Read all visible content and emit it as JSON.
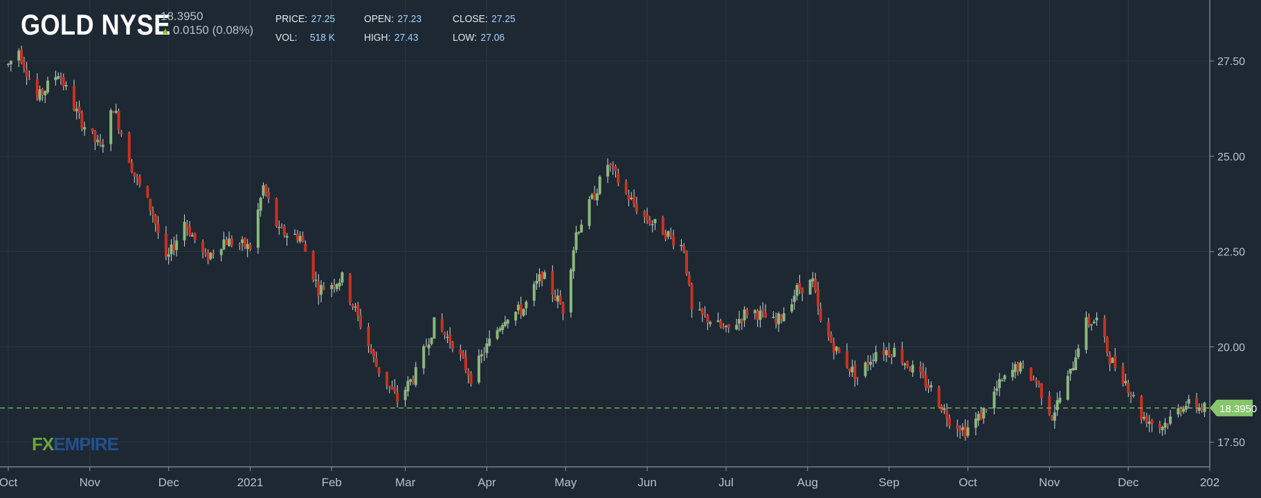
{
  "header": {
    "symbol": "GOLD NYSE",
    "last_price": "18.3950",
    "change": "0.0150 (0.08%)",
    "change_direction": "up",
    "stats": {
      "price_label": "PRICE:",
      "price": "27.25",
      "open_label": "OPEN:",
      "open": "27.23",
      "close_label": "CLOSE:",
      "close": "27.25",
      "vol_label": "VOL:",
      "vol": "518 K",
      "high_label": "HIGH:",
      "high": "27.43",
      "low_label": "LOW:",
      "low": "27.06"
    }
  },
  "logo": {
    "fx": "FX",
    "empire": "EMPIRE"
  },
  "colors": {
    "background": "#1e2833",
    "grid": "#2a3642",
    "up": "#8ab97a",
    "down": "#c8321f",
    "axis_text": "#b9c2ca",
    "price_tag": "#86c56a"
  },
  "chart_data": {
    "type": "candlestick",
    "title": "GOLD NYSE",
    "ylim": [
      16.85,
      29.1
    ],
    "y_ticks": [
      17.5,
      20.0,
      22.5,
      25.0,
      27.5
    ],
    "y_tick_labels": [
      "17.50",
      "20.00",
      "22.50",
      "25.00",
      "27.50"
    ],
    "x_months": [
      "Oct",
      "Nov",
      "Dec",
      "2021",
      "Feb",
      "Mar",
      "Apr",
      "May",
      "Jun",
      "Jul",
      "Aug",
      "Sep",
      "Oct",
      "Nov",
      "Dec",
      "202"
    ],
    "x_start": "2020-10-01",
    "x_end": "2022-01-01",
    "last_price_line": 18.395,
    "last_price_label": "18.3950",
    "key_points": [
      [
        "2020-10-01",
        27.4
      ],
      [
        "2020-10-05",
        27.8
      ],
      [
        "2020-10-12",
        26.5
      ],
      [
        "2020-10-20",
        27.2
      ],
      [
        "2020-10-28",
        26.0
      ],
      [
        "2020-11-05",
        25.2
      ],
      [
        "2020-11-10",
        26.3
      ],
      [
        "2020-11-18",
        24.5
      ],
      [
        "2020-11-25",
        23.5
      ],
      [
        "2020-11-30",
        22.2
      ],
      [
        "2020-12-07",
        23.3
      ],
      [
        "2020-12-15",
        22.3
      ],
      [
        "2020-12-22",
        22.8
      ],
      [
        "2021-01-01",
        22.6
      ],
      [
        "2021-01-06",
        24.2
      ],
      [
        "2021-01-12",
        23.0
      ],
      [
        "2021-01-20",
        22.9
      ],
      [
        "2021-01-27",
        21.5
      ],
      [
        "2021-02-05",
        21.8
      ],
      [
        "2021-02-12",
        20.6
      ],
      [
        "2021-02-18",
        19.5
      ],
      [
        "2021-02-26",
        18.6
      ],
      [
        "2021-03-05",
        19.3
      ],
      [
        "2021-03-12",
        20.6
      ],
      [
        "2021-03-19",
        20.1
      ],
      [
        "2021-03-26",
        19.2
      ],
      [
        "2021-04-01",
        20.0
      ],
      [
        "2021-04-08",
        20.8
      ],
      [
        "2021-04-15",
        21.0
      ],
      [
        "2021-04-22",
        21.9
      ],
      [
        "2021-04-30",
        21.0
      ],
      [
        "2021-05-05",
        23.0
      ],
      [
        "2021-05-12",
        24.0
      ],
      [
        "2021-05-17",
        24.8
      ],
      [
        "2021-05-24",
        24.0
      ],
      [
        "2021-05-31",
        23.4
      ],
      [
        "2021-06-08",
        23.0
      ],
      [
        "2021-06-15",
        22.6
      ],
      [
        "2021-06-18",
        20.9
      ],
      [
        "2021-06-25",
        20.7
      ],
      [
        "2021-07-01",
        20.4
      ],
      [
        "2021-07-10",
        21.0
      ],
      [
        "2021-07-20",
        20.6
      ],
      [
        "2021-07-28",
        21.5
      ],
      [
        "2021-08-03",
        21.7
      ],
      [
        "2021-08-06",
        20.6
      ],
      [
        "2021-08-12",
        19.9
      ],
      [
        "2021-08-20",
        19.2
      ],
      [
        "2021-08-27",
        19.9
      ],
      [
        "2021-09-03",
        19.9
      ],
      [
        "2021-09-10",
        19.4
      ],
      [
        "2021-09-17",
        18.9
      ],
      [
        "2021-09-24",
        18.1
      ],
      [
        "2021-09-30",
        17.8
      ],
      [
        "2021-10-06",
        18.2
      ],
      [
        "2021-10-13",
        19.0
      ],
      [
        "2021-10-20",
        19.5
      ],
      [
        "2021-10-27",
        19.1
      ],
      [
        "2021-11-02",
        18.2
      ],
      [
        "2021-11-09",
        19.3
      ],
      [
        "2021-11-14",
        20.6
      ],
      [
        "2021-11-19",
        20.7
      ],
      [
        "2021-11-24",
        19.7
      ],
      [
        "2021-11-30",
        19.1
      ],
      [
        "2021-12-06",
        18.2
      ],
      [
        "2021-12-13",
        17.9
      ],
      [
        "2021-12-17",
        18.1
      ],
      [
        "2021-12-22",
        18.5
      ],
      [
        "2021-12-30",
        18.4
      ]
    ]
  }
}
